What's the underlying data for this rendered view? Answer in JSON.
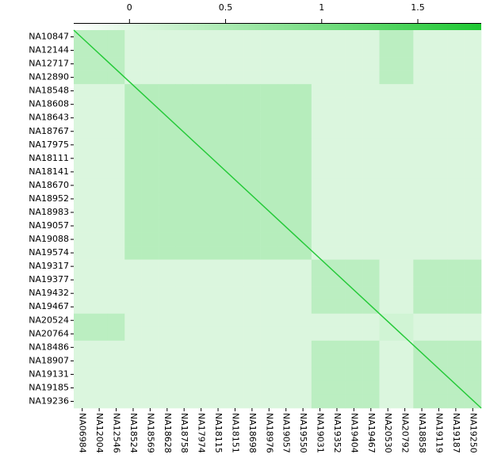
{
  "chart_data": {
    "type": "heatmap",
    "row_labels": [
      "NA10847",
      "NA12144",
      "NA12717",
      "NA12890",
      "NA18548",
      "NA18608",
      "NA18643",
      "NA18767",
      "NA17975",
      "NA18111",
      "NA18141",
      "NA18670",
      "NA18952",
      "NA18983",
      "NA19057",
      "NA19088",
      "NA19574",
      "NA19317",
      "NA19377",
      "NA19432",
      "NA19467",
      "NA20524",
      "NA20764",
      "NA18486",
      "NA18907",
      "NA19131",
      "NA19185",
      "NA19236"
    ],
    "col_labels": [
      "NA06984",
      "NA12004",
      "NA12546",
      "NA18524",
      "NA18569",
      "NA18628",
      "NA18758",
      "NA17974",
      "NA18115",
      "NA18151",
      "NA18698",
      "NA18976",
      "NA19057",
      "NA19550",
      "NA19031",
      "NA19352",
      "NA19404",
      "NA19467",
      "NA20530",
      "NA20792",
      "NA18858",
      "NA19119",
      "NA19187",
      "NA19250"
    ],
    "values": [
      [
        0.35,
        0.35,
        0.35,
        0.05,
        0.05,
        0.05,
        0.05,
        0.05,
        0.05,
        0.05,
        0.05,
        0.05,
        0.05,
        0.05,
        0.05,
        0.05,
        0.05,
        0.05,
        0.35,
        0.35,
        0.05,
        0.05,
        0.05,
        0.05
      ],
      [
        0.35,
        0.35,
        0.35,
        0.05,
        0.05,
        0.05,
        0.05,
        0.05,
        0.05,
        0.05,
        0.05,
        0.05,
        0.05,
        0.05,
        0.05,
        0.05,
        0.05,
        0.05,
        0.35,
        0.35,
        0.05,
        0.05,
        0.05,
        0.05
      ],
      [
        0.35,
        0.35,
        0.35,
        0.05,
        0.05,
        0.05,
        0.05,
        0.05,
        0.05,
        0.05,
        0.05,
        0.05,
        0.05,
        0.05,
        0.05,
        0.05,
        0.05,
        0.05,
        0.35,
        0.35,
        0.05,
        0.05,
        0.05,
        0.05
      ],
      [
        0.35,
        0.35,
        0.35,
        0.05,
        0.05,
        0.05,
        0.05,
        0.05,
        0.05,
        0.05,
        0.05,
        0.05,
        0.05,
        0.05,
        0.05,
        0.05,
        0.05,
        0.05,
        0.35,
        0.35,
        0.05,
        0.05,
        0.05,
        0.05
      ],
      [
        0.05,
        0.05,
        0.05,
        0.4,
        0.4,
        0.4,
        0.4,
        0.4,
        0.4,
        0.4,
        0.4,
        0.4,
        0.4,
        0.4,
        0.05,
        0.05,
        0.05,
        0.05,
        0.05,
        0.05,
        0.05,
        0.05,
        0.05,
        0.05
      ],
      [
        0.05,
        0.05,
        0.05,
        0.4,
        0.4,
        0.4,
        0.4,
        0.4,
        0.4,
        0.4,
        0.4,
        0.4,
        0.4,
        0.4,
        0.05,
        0.05,
        0.05,
        0.05,
        0.05,
        0.05,
        0.05,
        0.05,
        0.05,
        0.05
      ],
      [
        0.05,
        0.05,
        0.05,
        0.4,
        0.4,
        0.4,
        0.4,
        0.4,
        0.4,
        0.4,
        0.4,
        0.4,
        0.4,
        0.4,
        0.05,
        0.05,
        0.05,
        0.05,
        0.05,
        0.05,
        0.05,
        0.05,
        0.05,
        0.05
      ],
      [
        0.05,
        0.05,
        0.05,
        0.4,
        0.4,
        0.4,
        0.4,
        0.4,
        0.4,
        0.4,
        0.4,
        0.4,
        0.4,
        0.4,
        0.05,
        0.05,
        0.05,
        0.05,
        0.05,
        0.05,
        0.05,
        0.05,
        0.05,
        0.05
      ],
      [
        0.05,
        0.05,
        0.05,
        0.4,
        0.4,
        0.4,
        0.4,
        0.4,
        0.4,
        0.4,
        0.4,
        0.4,
        0.4,
        0.4,
        0.05,
        0.05,
        0.05,
        0.05,
        0.05,
        0.05,
        0.05,
        0.05,
        0.05,
        0.05
      ],
      [
        0.05,
        0.05,
        0.05,
        0.4,
        0.4,
        0.4,
        0.4,
        0.4,
        0.4,
        0.4,
        0.4,
        0.4,
        0.4,
        0.4,
        0.05,
        0.05,
        0.05,
        0.05,
        0.05,
        0.05,
        0.05,
        0.05,
        0.05,
        0.05
      ],
      [
        0.05,
        0.05,
        0.05,
        0.4,
        0.4,
        0.4,
        0.4,
        0.4,
        0.4,
        0.4,
        0.4,
        0.4,
        0.4,
        0.4,
        0.05,
        0.05,
        0.05,
        0.05,
        0.05,
        0.05,
        0.05,
        0.05,
        0.05,
        0.05
      ],
      [
        0.05,
        0.05,
        0.05,
        0.4,
        0.4,
        0.4,
        0.4,
        0.4,
        0.4,
        0.4,
        0.4,
        0.4,
        0.4,
        0.4,
        0.05,
        0.05,
        0.05,
        0.05,
        0.05,
        0.05,
        0.05,
        0.05,
        0.05,
        0.05
      ],
      [
        0.05,
        0.05,
        0.05,
        0.4,
        0.4,
        0.4,
        0.4,
        0.4,
        0.4,
        0.4,
        0.4,
        0.4,
        0.4,
        0.4,
        0.05,
        0.05,
        0.05,
        0.05,
        0.05,
        0.05,
        0.05,
        0.05,
        0.05,
        0.05
      ],
      [
        0.05,
        0.05,
        0.05,
        0.4,
        0.4,
        0.4,
        0.4,
        0.4,
        0.4,
        0.4,
        0.4,
        0.4,
        0.4,
        0.4,
        0.05,
        0.05,
        0.05,
        0.05,
        0.05,
        0.05,
        0.05,
        0.05,
        0.05,
        0.05
      ],
      [
        0.05,
        0.05,
        0.05,
        0.4,
        0.4,
        0.4,
        0.4,
        0.4,
        0.4,
        0.4,
        0.4,
        0.4,
        0.4,
        0.4,
        0.05,
        0.05,
        0.05,
        0.05,
        0.05,
        0.05,
        0.05,
        0.05,
        0.05,
        0.05
      ],
      [
        0.05,
        0.05,
        0.05,
        0.4,
        0.4,
        0.4,
        0.4,
        0.4,
        0.4,
        0.4,
        0.4,
        0.4,
        0.4,
        0.4,
        0.05,
        0.05,
        0.05,
        0.05,
        0.05,
        0.05,
        0.05,
        0.05,
        0.05,
        0.05
      ],
      [
        0.05,
        0.05,
        0.05,
        0.4,
        0.4,
        0.4,
        0.4,
        0.4,
        0.4,
        0.4,
        0.4,
        0.4,
        0.4,
        0.4,
        0.05,
        0.05,
        0.05,
        0.05,
        0.05,
        0.05,
        0.05,
        0.05,
        0.05,
        0.05
      ],
      [
        0.05,
        0.05,
        0.05,
        0.05,
        0.05,
        0.05,
        0.05,
        0.05,
        0.05,
        0.05,
        0.05,
        0.05,
        0.05,
        0.05,
        0.35,
        0.35,
        0.35,
        0.35,
        0.05,
        0.05,
        0.35,
        0.35,
        0.35,
        0.35
      ],
      [
        0.05,
        0.05,
        0.05,
        0.05,
        0.05,
        0.05,
        0.05,
        0.05,
        0.05,
        0.05,
        0.05,
        0.05,
        0.05,
        0.05,
        0.35,
        0.35,
        0.35,
        0.35,
        0.05,
        0.05,
        0.35,
        0.35,
        0.35,
        0.35
      ],
      [
        0.05,
        0.05,
        0.05,
        0.05,
        0.05,
        0.05,
        0.05,
        0.05,
        0.05,
        0.05,
        0.05,
        0.05,
        0.05,
        0.05,
        0.35,
        0.35,
        0.35,
        0.35,
        0.05,
        0.05,
        0.35,
        0.35,
        0.35,
        0.35
      ],
      [
        0.05,
        0.05,
        0.05,
        0.05,
        0.05,
        0.05,
        0.05,
        0.05,
        0.05,
        0.05,
        0.05,
        0.05,
        0.05,
        0.05,
        0.35,
        0.35,
        0.35,
        0.35,
        0.05,
        0.05,
        0.35,
        0.35,
        0.35,
        0.35
      ],
      [
        0.35,
        0.35,
        0.35,
        0.05,
        0.05,
        0.05,
        0.05,
        0.05,
        0.05,
        0.05,
        0.05,
        0.05,
        0.05,
        0.05,
        0.05,
        0.05,
        0.05,
        0.05,
        0.15,
        0.15,
        0.05,
        0.05,
        0.05,
        0.05
      ],
      [
        0.35,
        0.35,
        0.35,
        0.05,
        0.05,
        0.05,
        0.05,
        0.05,
        0.05,
        0.05,
        0.05,
        0.05,
        0.05,
        0.05,
        0.05,
        0.05,
        0.05,
        0.05,
        0.15,
        0.15,
        0.05,
        0.05,
        0.05,
        0.05
      ],
      [
        0.05,
        0.05,
        0.05,
        0.05,
        0.05,
        0.05,
        0.05,
        0.05,
        0.05,
        0.05,
        0.05,
        0.05,
        0.05,
        0.05,
        0.35,
        0.35,
        0.35,
        0.35,
        0.05,
        0.05,
        0.35,
        0.35,
        0.35,
        0.35
      ],
      [
        0.05,
        0.05,
        0.05,
        0.05,
        0.05,
        0.05,
        0.05,
        0.05,
        0.05,
        0.05,
        0.05,
        0.05,
        0.05,
        0.05,
        0.35,
        0.35,
        0.35,
        0.35,
        0.05,
        0.05,
        0.35,
        0.35,
        0.35,
        0.35
      ],
      [
        0.05,
        0.05,
        0.05,
        0.05,
        0.05,
        0.05,
        0.05,
        0.05,
        0.05,
        0.05,
        0.05,
        0.05,
        0.05,
        0.05,
        0.35,
        0.35,
        0.35,
        0.35,
        0.05,
        0.05,
        0.35,
        0.35,
        0.35,
        0.35
      ],
      [
        0.05,
        0.05,
        0.05,
        0.05,
        0.05,
        0.05,
        0.05,
        0.05,
        0.05,
        0.05,
        0.05,
        0.05,
        0.05,
        0.05,
        0.35,
        0.35,
        0.35,
        0.35,
        0.05,
        0.05,
        0.35,
        0.35,
        0.35,
        0.35
      ],
      [
        0.05,
        0.05,
        0.05,
        0.05,
        0.05,
        0.05,
        0.05,
        0.05,
        0.05,
        0.05,
        0.05,
        0.05,
        0.05,
        0.05,
        0.35,
        0.35,
        0.35,
        0.35,
        0.05,
        0.05,
        0.35,
        0.35,
        0.35,
        0.35
      ]
    ],
    "diagonal": 1.75,
    "clim": [
      -0.29,
      1.83
    ],
    "cticks": [
      0,
      0.5,
      1,
      1.5
    ],
    "cmap": [
      "#ffffff",
      "#1ec832"
    ]
  }
}
